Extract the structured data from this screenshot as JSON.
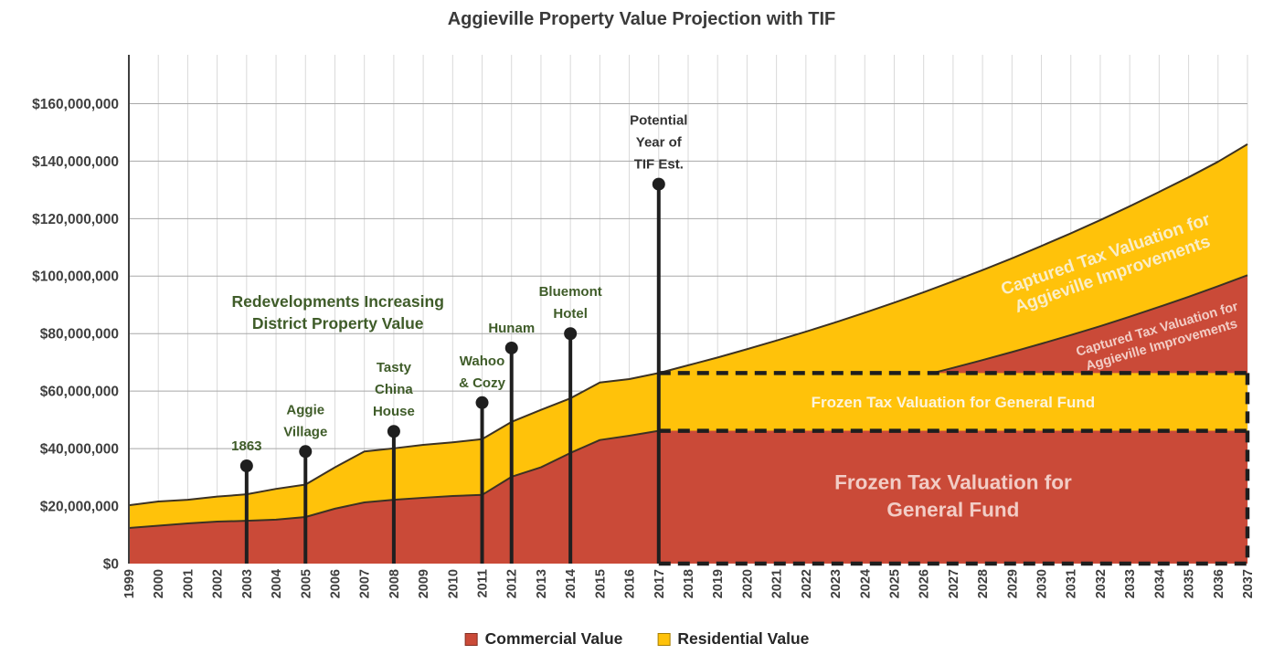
{
  "title": "Aggieville Property Value Projection with TIF",
  "legend": {
    "items": [
      {
        "label": "Commercial Value",
        "color": "#CA4A38"
      },
      {
        "label": "Residential Value",
        "color": "#FFC20A"
      }
    ]
  },
  "colors": {
    "commercial_fill": "#CA4A38",
    "residential_fill": "#FFC20A",
    "area_boundary_stroke": "#3C3223",
    "grid_vertical": "#D9D9D9",
    "grid_horizontal": "#A8A8A8",
    "axis_line": "#3F3F3F",
    "tick_label": "#3F3F3F",
    "annotation_green": "#3F5C29",
    "annotation_dark": "#333333",
    "marker_black": "#1F1F1F",
    "dashed_border": "#1E1E1E",
    "label_on_yellow": "#FDF4DC",
    "label_on_red": "#F2CDC6",
    "captured_on_yellow": "#FAEEC8",
    "captured_on_red": "#F2CDC6"
  },
  "chart_data": {
    "type": "area",
    "stacked": true,
    "title": "Aggieville Property Value Projection with TIF",
    "xlabel": "",
    "ylabel": "",
    "units": "USD (values stored in millions)",
    "x_years": [
      1999,
      2000,
      2001,
      2002,
      2003,
      2004,
      2005,
      2006,
      2007,
      2008,
      2009,
      2010,
      2011,
      2012,
      2013,
      2014,
      2015,
      2016,
      2017,
      2018,
      2019,
      2020,
      2021,
      2022,
      2023,
      2024,
      2025,
      2026,
      2027,
      2028,
      2029,
      2030,
      2031,
      2032,
      2033,
      2034,
      2035,
      2036,
      2037
    ],
    "series": [
      {
        "name": "Commercial Value",
        "color": "#CA4A38",
        "values_musd": [
          12.4,
          13.2,
          14.0,
          14.6,
          14.9,
          15.3,
          16.2,
          19.1,
          21.3,
          22.2,
          22.9,
          23.5,
          23.9,
          30.2,
          33.5,
          38.5,
          43.0,
          44.5,
          46.2,
          48.0,
          49.9,
          51.9,
          53.9,
          56.1,
          58.3,
          60.6,
          63.0,
          65.5,
          68.1,
          70.8,
          73.6,
          76.5,
          79.5,
          82.6,
          85.9,
          89.3,
          92.8,
          96.5,
          100.3
        ]
      },
      {
        "name": "Residential Value",
        "color": "#FFC20A",
        "values_musd": [
          7.9,
          8.4,
          8.2,
          8.7,
          9.2,
          10.7,
          11.3,
          14.4,
          17.7,
          17.9,
          18.4,
          18.7,
          19.4,
          19.1,
          20.0,
          19.0,
          20.0,
          19.7,
          20.1,
          21.0,
          21.8,
          22.7,
          23.7,
          24.6,
          25.6,
          26.7,
          27.8,
          28.9,
          30.1,
          31.3,
          32.6,
          34.0,
          35.4,
          36.9,
          38.4,
          40.0,
          41.6,
          43.3,
          45.6
        ]
      }
    ],
    "ylim_musd": [
      0,
      177
    ],
    "ytick_interval_musd": 20,
    "ytick_labels": [
      "$0",
      "$20,000,000",
      "$40,000,000",
      "$60,000,000",
      "$80,000,000",
      "$100,000,000",
      "$120,000,000",
      "$140,000,000",
      "$160,000,000"
    ],
    "grid": true,
    "legend_position": "bottom",
    "x_labels_rotated_deg": -90,
    "annotations": [
      {
        "id": "1863",
        "lines": [
          "1863"
        ],
        "year": 2003,
        "value_musd": 34,
        "style": "green"
      },
      {
        "id": "aggie-village",
        "lines": [
          "Aggie",
          "Village"
        ],
        "year": 2005,
        "value_musd": 39,
        "style": "green"
      },
      {
        "id": "tasty-china-house",
        "lines": [
          "Tasty",
          "China",
          "House"
        ],
        "year": 2008,
        "value_musd": 46,
        "style": "green"
      },
      {
        "id": "wahoo-cozy",
        "lines": [
          "Wahoo",
          "& Cozy"
        ],
        "year": 2011,
        "value_musd": 56,
        "style": "green"
      },
      {
        "id": "hunam",
        "lines": [
          "Hunam"
        ],
        "year": 2012,
        "value_musd": 75,
        "style": "green"
      },
      {
        "id": "bluemont-hotel",
        "lines": [
          "Bluemont",
          "Hotel"
        ],
        "year": 2014,
        "value_musd": 80,
        "style": "green"
      },
      {
        "id": "potential-tif",
        "lines": [
          "Potential",
          "Year of",
          "TIF Est."
        ],
        "year": 2017,
        "value_musd": 132,
        "style": "dark"
      }
    ],
    "callout": {
      "lines": [
        "Redevelopments Increasing",
        "District Property Value"
      ],
      "anchor_year": 2006.1,
      "anchor_value_musd": 88
    },
    "overlays": {
      "tif_year": 2017,
      "end_year": 2037,
      "frozen_commercial_musd": 46.2,
      "frozen_total_musd": 66.3,
      "frozen_residential_label": "Frozen Tax Valuation for General Fund",
      "frozen_commercial_label_lines": [
        "Frozen Tax Valuation for",
        "General Fund"
      ],
      "captured_residential_label_lines": [
        "Captured Tax Valuation for",
        "Aggieville Improvements"
      ],
      "captured_residential_anchor": {
        "year": 2032.3,
        "value_musd": 104,
        "angle_deg": -19
      },
      "captured_commercial_label_lines": [
        "Captured Tax Valuation for",
        "Aggieville Improvements"
      ],
      "captured_commercial_anchor": {
        "year": 2034.0,
        "value_musd": 79,
        "angle_deg": -16
      }
    }
  }
}
